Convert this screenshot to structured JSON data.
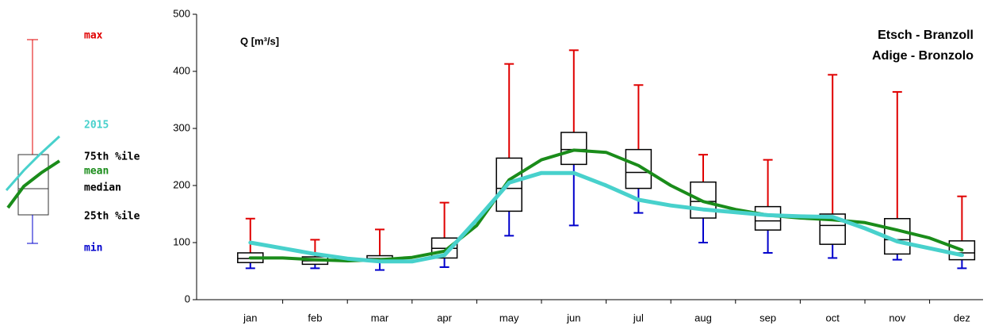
{
  "chart_data": {
    "type": "box",
    "title": "Etsch - Branzoll",
    "subtitle": "Adige - Bronzolo",
    "y_label": "Q [m³/s]",
    "categories": [
      "jan",
      "feb",
      "mar",
      "apr",
      "may",
      "jun",
      "jul",
      "aug",
      "sep",
      "oct",
      "nov",
      "dez"
    ],
    "stats": [
      {
        "min": 55,
        "q1": 65,
        "median": 72,
        "q3": 82,
        "max": 142
      },
      {
        "min": 55,
        "q1": 62,
        "median": 68,
        "q3": 75,
        "max": 105
      },
      {
        "min": 52,
        "q1": 70,
        "median": 72,
        "q3": 77,
        "max": 123
      },
      {
        "min": 57,
        "q1": 73,
        "median": 90,
        "q3": 108,
        "max": 170
      },
      {
        "min": 112,
        "q1": 155,
        "median": 195,
        "q3": 248,
        "max": 413
      },
      {
        "min": 130,
        "q1": 237,
        "median": 263,
        "q3": 293,
        "max": 437
      },
      {
        "min": 152,
        "q1": 195,
        "median": 223,
        "q3": 263,
        "max": 376
      },
      {
        "min": 100,
        "q1": 143,
        "median": 172,
        "q3": 206,
        "max": 254
      },
      {
        "min": 82,
        "q1": 122,
        "median": 138,
        "q3": 163,
        "max": 245
      },
      {
        "min": 73,
        "q1": 97,
        "median": 130,
        "q3": 150,
        "max": 394
      },
      {
        "min": 70,
        "q1": 80,
        "median": 105,
        "q3": 142,
        "max": 364
      },
      {
        "min": 55,
        "q1": 70,
        "median": 82,
        "q3": 103,
        "max": 181
      }
    ],
    "max_color": "#e00000",
    "min_color": "#0000cc",
    "lines": [
      {
        "name": "mean",
        "color": "#1a8c1a",
        "x": [
          0,
          0.5,
          1,
          1.5,
          2,
          2.5,
          3,
          3.5,
          4,
          4.5,
          5,
          5.5,
          6,
          6.5,
          7,
          7.5,
          8,
          8.5,
          9,
          9.5,
          10,
          10.5,
          11
        ],
        "values": [
          73,
          73,
          70,
          68,
          70,
          74,
          85,
          130,
          210,
          245,
          262,
          258,
          235,
          200,
          172,
          158,
          148,
          143,
          140,
          135,
          122,
          108,
          87
        ]
      },
      {
        "name": "2015",
        "color": "#48d1cc",
        "x": [
          0,
          0.5,
          1,
          1.5,
          2,
          2.5,
          3,
          3.5,
          4,
          4.5,
          5,
          5.5,
          6,
          6.5,
          7,
          7.5,
          8,
          8.5,
          9,
          9.5,
          10,
          10.5,
          11
        ],
        "values": [
          100,
          90,
          80,
          72,
          67,
          67,
          78,
          140,
          205,
          222,
          222,
          200,
          175,
          165,
          158,
          153,
          148,
          146,
          145,
          125,
          102,
          90,
          78
        ]
      }
    ],
    "legend_labels": {
      "max": "max",
      "q3": "75th %ile",
      "median": "median",
      "q1": "25th %ile",
      "min": "min"
    },
    "ylim": [
      0,
      500
    ],
    "yticks": [
      0,
      100,
      200,
      300,
      400,
      500
    ]
  }
}
